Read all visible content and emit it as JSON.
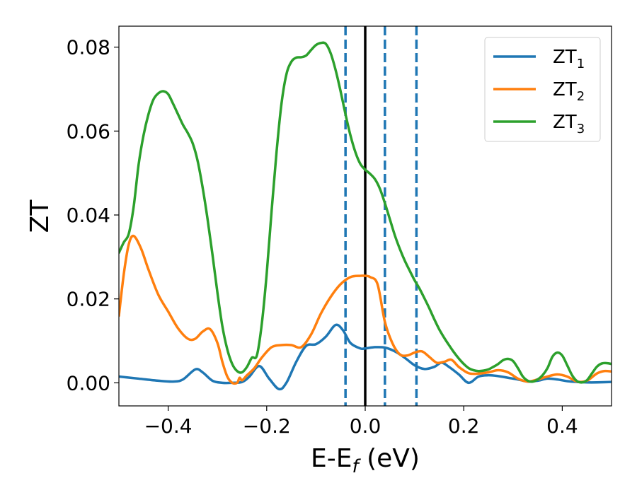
{
  "chart_data": {
    "type": "line",
    "xlabel_main": "E-E",
    "xlabel_sub": "f",
    "xlabel_unit": " (eV)",
    "ylabel": "ZT",
    "xlim": [
      -0.5,
      0.5
    ],
    "ylim": [
      -0.0055,
      0.085
    ],
    "x_ticks": [
      -0.4,
      -0.2,
      0.0,
      0.2,
      0.4
    ],
    "x_tick_labels": [
      "−0.4",
      "−0.2",
      "0.0",
      "0.2",
      "0.4"
    ],
    "y_ticks": [
      0.0,
      0.02,
      0.04,
      0.06,
      0.08
    ],
    "y_tick_labels": [
      "0.00",
      "0.02",
      "0.04",
      "0.06",
      "0.08"
    ],
    "grid": false,
    "legend_position": "top-right",
    "vertical_lines": [
      {
        "x": -0.04,
        "style": "dashed",
        "color": "#1f77b4"
      },
      {
        "x": 0.0,
        "style": "solid",
        "color": "#000000"
      },
      {
        "x": 0.04,
        "style": "dashed",
        "color": "#1f77b4"
      },
      {
        "x": 0.104,
        "style": "dashed",
        "color": "#1f77b4"
      }
    ],
    "series": [
      {
        "name_main": "ZT",
        "name_sub": "1",
        "color": "#1f77b4",
        "points": [
          [
            -0.5,
            0.0015
          ],
          [
            -0.46,
            0.001
          ],
          [
            -0.42,
            0.0005
          ],
          [
            -0.39,
            0.0003
          ],
          [
            -0.37,
            0.0008
          ],
          [
            -0.345,
            0.0032
          ],
          [
            -0.33,
            0.0025
          ],
          [
            -0.31,
            0.0005
          ],
          [
            -0.29,
            0.0
          ],
          [
            -0.27,
            0.0
          ],
          [
            -0.25,
            0.0002
          ],
          [
            -0.235,
            0.0015
          ],
          [
            -0.215,
            0.004
          ],
          [
            -0.195,
            0.001
          ],
          [
            -0.175,
            -0.0015
          ],
          [
            -0.16,
            0.0
          ],
          [
            -0.14,
            0.005
          ],
          [
            -0.12,
            0.0088
          ],
          [
            -0.1,
            0.0092
          ],
          [
            -0.08,
            0.011
          ],
          [
            -0.06,
            0.0138
          ],
          [
            -0.045,
            0.0125
          ],
          [
            -0.03,
            0.0095
          ],
          [
            -0.01,
            0.0082
          ],
          [
            0.0,
            0.0082
          ],
          [
            0.02,
            0.0085
          ],
          [
            0.04,
            0.0084
          ],
          [
            0.06,
            0.0075
          ],
          [
            0.08,
            0.006
          ],
          [
            0.1,
            0.0042
          ],
          [
            0.12,
            0.0033
          ],
          [
            0.14,
            0.0038
          ],
          [
            0.155,
            0.0048
          ],
          [
            0.17,
            0.0038
          ],
          [
            0.19,
            0.002
          ],
          [
            0.21,
            0.0
          ],
          [
            0.23,
            0.0015
          ],
          [
            0.25,
            0.0018
          ],
          [
            0.27,
            0.0016
          ],
          [
            0.29,
            0.0012
          ],
          [
            0.31,
            0.0008
          ],
          [
            0.33,
            0.0003
          ],
          [
            0.35,
            0.0005
          ],
          [
            0.37,
            0.001
          ],
          [
            0.39,
            0.0008
          ],
          [
            0.41,
            0.0004
          ],
          [
            0.43,
            0.0002
          ],
          [
            0.45,
            0.0001
          ],
          [
            0.47,
            0.0001
          ],
          [
            0.5,
            0.0002
          ]
        ]
      },
      {
        "name_main": "ZT",
        "name_sub": "2",
        "color": "#ff7f0e",
        "points": [
          [
            -0.5,
            0.016
          ],
          [
            -0.49,
            0.026
          ],
          [
            -0.48,
            0.033
          ],
          [
            -0.47,
            0.035
          ],
          [
            -0.455,
            0.032
          ],
          [
            -0.44,
            0.027
          ],
          [
            -0.42,
            0.021
          ],
          [
            -0.4,
            0.017
          ],
          [
            -0.38,
            0.013
          ],
          [
            -0.36,
            0.0105
          ],
          [
            -0.345,
            0.0105
          ],
          [
            -0.33,
            0.0122
          ],
          [
            -0.315,
            0.0128
          ],
          [
            -0.3,
            0.0095
          ],
          [
            -0.29,
            0.005
          ],
          [
            -0.28,
            0.0015
          ],
          [
            -0.27,
            0.0
          ],
          [
            -0.26,
            0.0
          ],
          [
            -0.255,
            0.0012
          ],
          [
            -0.25,
            0.0006
          ],
          [
            -0.24,
            0.0018
          ],
          [
            -0.225,
            0.0035
          ],
          [
            -0.21,
            0.006
          ],
          [
            -0.19,
            0.0085
          ],
          [
            -0.17,
            0.009
          ],
          [
            -0.15,
            0.009
          ],
          [
            -0.13,
            0.0085
          ],
          [
            -0.11,
            0.0115
          ],
          [
            -0.09,
            0.0165
          ],
          [
            -0.07,
            0.0205
          ],
          [
            -0.05,
            0.0235
          ],
          [
            -0.03,
            0.0252
          ],
          [
            -0.01,
            0.0255
          ],
          [
            0.0,
            0.0255
          ],
          [
            0.01,
            0.0252
          ],
          [
            0.025,
            0.0235
          ],
          [
            0.04,
            0.0145
          ],
          [
            0.055,
            0.0095
          ],
          [
            0.07,
            0.0068
          ],
          [
            0.085,
            0.0065
          ],
          [
            0.1,
            0.0072
          ],
          [
            0.115,
            0.0075
          ],
          [
            0.13,
            0.0062
          ],
          [
            0.145,
            0.0048
          ],
          [
            0.16,
            0.005
          ],
          [
            0.175,
            0.0055
          ],
          [
            0.19,
            0.0038
          ],
          [
            0.21,
            0.0023
          ],
          [
            0.23,
            0.0022
          ],
          [
            0.25,
            0.0025
          ],
          [
            0.27,
            0.003
          ],
          [
            0.29,
            0.0025
          ],
          [
            0.31,
            0.001
          ],
          [
            0.33,
            0.0003
          ],
          [
            0.35,
            0.0008
          ],
          [
            0.37,
            0.0015
          ],
          [
            0.39,
            0.002
          ],
          [
            0.41,
            0.0015
          ],
          [
            0.43,
            0.0003
          ],
          [
            0.45,
            0.0005
          ],
          [
            0.47,
            0.0022
          ],
          [
            0.485,
            0.0028
          ],
          [
            0.5,
            0.0027
          ]
        ]
      },
      {
        "name_main": "ZT",
        "name_sub": "3",
        "color": "#2ca02c",
        "points": [
          [
            -0.5,
            0.031
          ],
          [
            -0.49,
            0.0335
          ],
          [
            -0.48,
            0.0355
          ],
          [
            -0.47,
            0.042
          ],
          [
            -0.46,
            0.052
          ],
          [
            -0.45,
            0.059
          ],
          [
            -0.44,
            0.064
          ],
          [
            -0.43,
            0.0675
          ],
          [
            -0.42,
            0.069
          ],
          [
            -0.41,
            0.0695
          ],
          [
            -0.4,
            0.0688
          ],
          [
            -0.39,
            0.0665
          ],
          [
            -0.38,
            0.064
          ],
          [
            -0.37,
            0.0615
          ],
          [
            -0.36,
            0.0595
          ],
          [
            -0.35,
            0.057
          ],
          [
            -0.34,
            0.0528
          ],
          [
            -0.33,
            0.0465
          ],
          [
            -0.32,
            0.039
          ],
          [
            -0.31,
            0.0305
          ],
          [
            -0.3,
            0.0215
          ],
          [
            -0.29,
            0.0135
          ],
          [
            -0.28,
            0.008
          ],
          [
            -0.27,
            0.0045
          ],
          [
            -0.26,
            0.0028
          ],
          [
            -0.25,
            0.0025
          ],
          [
            -0.24,
            0.0038
          ],
          [
            -0.23,
            0.006
          ],
          [
            -0.22,
            0.0065
          ],
          [
            -0.21,
            0.014
          ],
          [
            -0.2,
            0.026
          ],
          [
            -0.19,
            0.041
          ],
          [
            -0.18,
            0.055
          ],
          [
            -0.17,
            0.0665
          ],
          [
            -0.16,
            0.0735
          ],
          [
            -0.15,
            0.0765
          ],
          [
            -0.14,
            0.0775
          ],
          [
            -0.13,
            0.0776
          ],
          [
            -0.12,
            0.078
          ],
          [
            -0.11,
            0.0793
          ],
          [
            -0.1,
            0.0805
          ],
          [
            -0.09,
            0.081
          ],
          [
            -0.08,
            0.0808
          ],
          [
            -0.07,
            0.0785
          ],
          [
            -0.06,
            0.0745
          ],
          [
            -0.05,
            0.0695
          ],
          [
            -0.04,
            0.064
          ],
          [
            -0.03,
            0.059
          ],
          [
            -0.02,
            0.055
          ],
          [
            -0.01,
            0.0522
          ],
          [
            0.0,
            0.0508
          ],
          [
            0.01,
            0.0498
          ],
          [
            0.02,
            0.0485
          ],
          [
            0.03,
            0.0462
          ],
          [
            0.04,
            0.0428
          ],
          [
            0.05,
            0.039
          ],
          [
            0.06,
            0.0352
          ],
          [
            0.07,
            0.032
          ],
          [
            0.08,
            0.0292
          ],
          [
            0.09,
            0.0268
          ],
          [
            0.1,
            0.0245
          ],
          [
            0.11,
            0.0225
          ],
          [
            0.12,
            0.0202
          ],
          [
            0.13,
            0.0178
          ],
          [
            0.14,
            0.0152
          ],
          [
            0.15,
            0.0128
          ],
          [
            0.16,
            0.0108
          ],
          [
            0.17,
            0.009
          ],
          [
            0.18,
            0.0073
          ],
          [
            0.19,
            0.0058
          ],
          [
            0.2,
            0.0045
          ],
          [
            0.21,
            0.0035
          ],
          [
            0.22,
            0.003
          ],
          [
            0.23,
            0.0028
          ],
          [
            0.24,
            0.0029
          ],
          [
            0.25,
            0.0032
          ],
          [
            0.26,
            0.0038
          ],
          [
            0.27,
            0.0045
          ],
          [
            0.28,
            0.0054
          ],
          [
            0.29,
            0.0057
          ],
          [
            0.3,
            0.0052
          ],
          [
            0.31,
            0.0035
          ],
          [
            0.32,
            0.0015
          ],
          [
            0.33,
            0.0005
          ],
          [
            0.34,
            0.0003
          ],
          [
            0.35,
            0.0008
          ],
          [
            0.36,
            0.0018
          ],
          [
            0.37,
            0.0035
          ],
          [
            0.38,
            0.0062
          ],
          [
            0.39,
            0.0072
          ],
          [
            0.4,
            0.0065
          ],
          [
            0.41,
            0.0042
          ],
          [
            0.42,
            0.0018
          ],
          [
            0.43,
            0.0004
          ],
          [
            0.44,
            0.0001
          ],
          [
            0.45,
            0.0006
          ],
          [
            0.46,
            0.0022
          ],
          [
            0.47,
            0.0038
          ],
          [
            0.48,
            0.0046
          ],
          [
            0.49,
            0.0047
          ],
          [
            0.5,
            0.0045
          ]
        ]
      }
    ]
  }
}
